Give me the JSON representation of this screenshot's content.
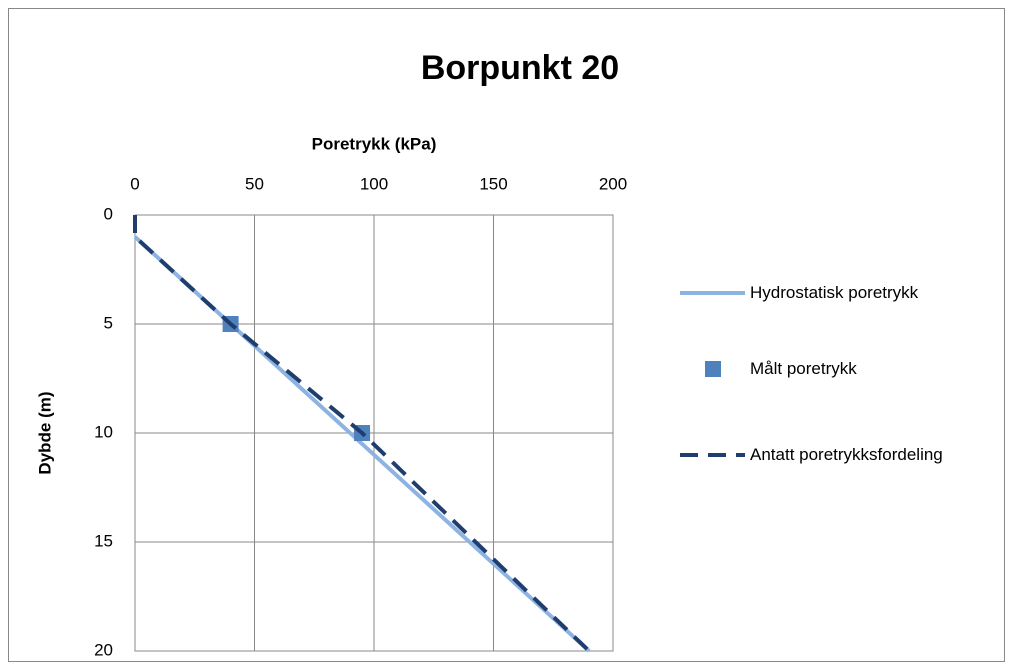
{
  "chart_data": {
    "type": "line",
    "title": "Borpunkt 20",
    "xlabel": "Poretrykk (kPa)",
    "ylabel": "Dybde (m)",
    "xlim": [
      0,
      200
    ],
    "xticks": [
      0,
      50,
      100,
      150,
      200
    ],
    "ylim": [
      0,
      20
    ],
    "yticks": [
      0,
      5,
      10,
      15,
      20
    ],
    "y_inverted": true,
    "x_axis_position": "top",
    "grid": true,
    "legend": "right",
    "series": [
      {
        "name": "Hydrostatisk poretrykk",
        "color": "#8db3e2",
        "style": "solid",
        "x": [
          0,
          190
        ],
        "values": [
          1,
          20
        ]
      },
      {
        "name": "Målt poretrykk",
        "color": "#4f81bd",
        "style": "markers",
        "x": [
          40,
          95
        ],
        "values": [
          5,
          10
        ]
      },
      {
        "name": "Antatt poretrykksfordeling",
        "color": "#1f3e6e",
        "style": "dashed",
        "x": [
          0,
          0,
          40,
          95,
          190
        ],
        "values": [
          0,
          1,
          5,
          10,
          20
        ]
      }
    ]
  }
}
